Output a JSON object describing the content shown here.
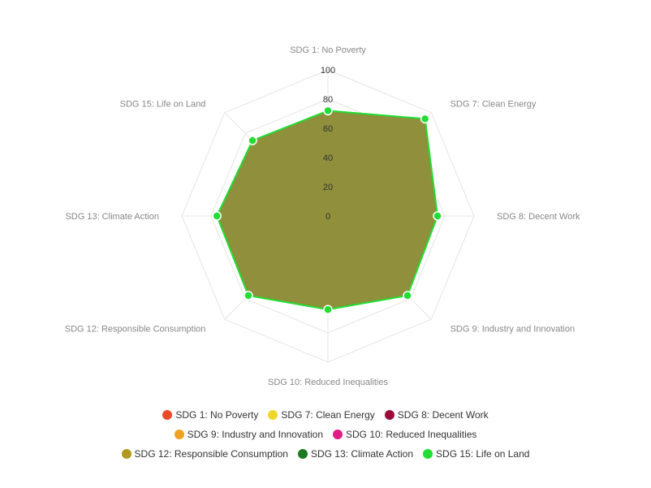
{
  "chart_data": {
    "type": "radar",
    "axes": [
      "SDG 1: No Poverty",
      "SDG 7: Clean Energy",
      "SDG 8: Decent Work",
      "SDG 9: Industry and Innovation",
      "SDG 10: Reduced Inequalities",
      "SDG 12: Responsible Consumption",
      "SDG 13: Climate Action",
      "SDG 15: Life on Land"
    ],
    "ticks": [
      "0",
      "20",
      "40",
      "60",
      "80",
      "100"
    ],
    "rmin": 0,
    "rmax": 100,
    "series": [
      {
        "values": [
          72,
          94,
          75,
          77,
          64,
          77,
          76,
          73
        ],
        "fill_color": "#8f8f3c",
        "line_color": "#22dd33",
        "point_color": "#22dd33"
      }
    ],
    "legend": [
      {
        "label": "SDG 1: No Poverty",
        "color": "#e84a2a"
      },
      {
        "label": "SDG 7: Clean Energy",
        "color": "#f0d82a"
      },
      {
        "label": "SDG 8: Decent Work",
        "color": "#9b0b3b"
      },
      {
        "label": "SDG 9: Industry and Innovation",
        "color": "#f0a11f"
      },
      {
        "label": "SDG 10: Reduced Inequalities",
        "color": "#e01c84"
      },
      {
        "label": "SDG 12: Responsible Consumption",
        "color": "#b09a1e"
      },
      {
        "label": "SDG 13: Climate Action",
        "color": "#1e7a22"
      },
      {
        "label": "SDG 15: Life on Land",
        "color": "#22dd33"
      }
    ],
    "legend_position": "bottom",
    "grid": true
  }
}
